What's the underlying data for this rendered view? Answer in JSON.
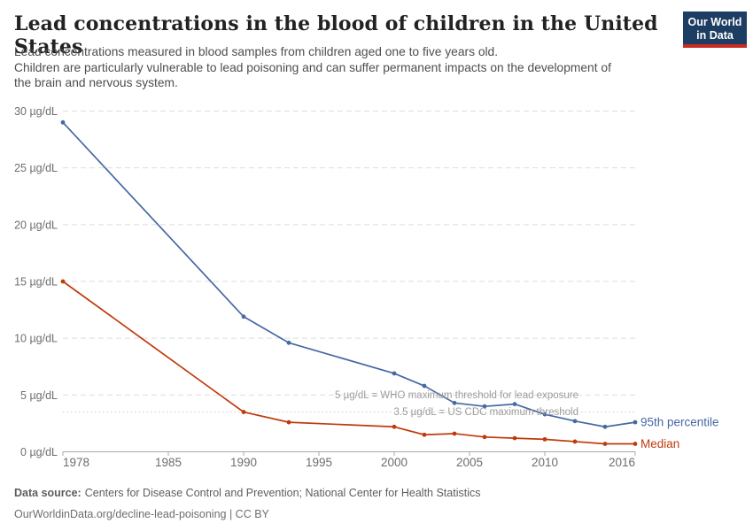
{
  "header": {
    "title": "Lead concentrations in the blood of children in the United States",
    "subtitle_lines": [
      "Lead concentrations measured in blood samples from children aged one to five years old.",
      "Children are particularly vulnerable to lead poisoning and can suffer permanent impacts on the development of",
      "the brain and nervous system."
    ],
    "logo": {
      "line1": "Our World",
      "line2": "in Data",
      "bg_color": "#1d3d63",
      "stripe_color": "#ca2b22"
    }
  },
  "footer": {
    "source_label": "Data source:",
    "source_text": "Centers for Disease Control and Prevention; National Center for Health Statistics",
    "link_text": "OurWorldinData.org/decline-lead-poisoning | CC BY"
  },
  "chart_data": {
    "type": "line",
    "title": "Lead concentrations in the blood of children in the United States",
    "xlabel": "",
    "ylabel": "µg/dL",
    "xlim": [
      1978,
      2016
    ],
    "ylim": [
      0,
      30
    ],
    "grid": "horizontal-dashed",
    "legend": "series-end-labels",
    "x": [
      1978,
      1990,
      1993,
      2000,
      2002,
      2004,
      2006,
      2008,
      2010,
      2012,
      2014,
      2016
    ],
    "series": [
      {
        "name": "95th percentile",
        "color": "#4668a3",
        "values": [
          29.0,
          11.9,
          9.6,
          6.9,
          5.8,
          4.3,
          4.0,
          4.2,
          3.3,
          2.7,
          2.2,
          2.6
        ]
      },
      {
        "name": "Median",
        "color": "#bf3a0c",
        "values": [
          15.0,
          3.5,
          2.6,
          2.2,
          1.5,
          1.6,
          1.3,
          1.2,
          1.1,
          0.9,
          0.7,
          0.7
        ]
      }
    ],
    "x_ticks": [
      {
        "value": 1978,
        "label": "1978"
      },
      {
        "value": 1985,
        "label": "1985"
      },
      {
        "value": 1990,
        "label": "1990"
      },
      {
        "value": 1995,
        "label": "1995"
      },
      {
        "value": 2000,
        "label": "2000"
      },
      {
        "value": 2005,
        "label": "2005"
      },
      {
        "value": 2010,
        "label": "2010"
      },
      {
        "value": 2016,
        "label": "2016"
      }
    ],
    "y_ticks": [
      {
        "value": 0,
        "label": "0 µg/dL"
      },
      {
        "value": 5,
        "label": "5 µg/dL"
      },
      {
        "value": 10,
        "label": "10 µg/dL"
      },
      {
        "value": 15,
        "label": "15 µg/dL"
      },
      {
        "value": 20,
        "label": "20 µg/dL"
      },
      {
        "value": 25,
        "label": "25 µg/dL"
      },
      {
        "value": 30,
        "label": "30 µg/dL"
      }
    ],
    "annotations": [
      {
        "text": "5 µg/dL = WHO maximum threshold for lead exposure",
        "y_value": 5,
        "line_style": "gridline"
      },
      {
        "text": "3.5 µg/dL = US CDC maximum threshold",
        "y_value": 3.5,
        "line_style": "dotted"
      }
    ],
    "annotation_color": "#9c9c9c",
    "gridline_color": "#dedede",
    "dotted_line_color": "#c9c9c9",
    "axis_line_color": "#a8a8a8",
    "tick_label_color": "#6e6e6e"
  }
}
